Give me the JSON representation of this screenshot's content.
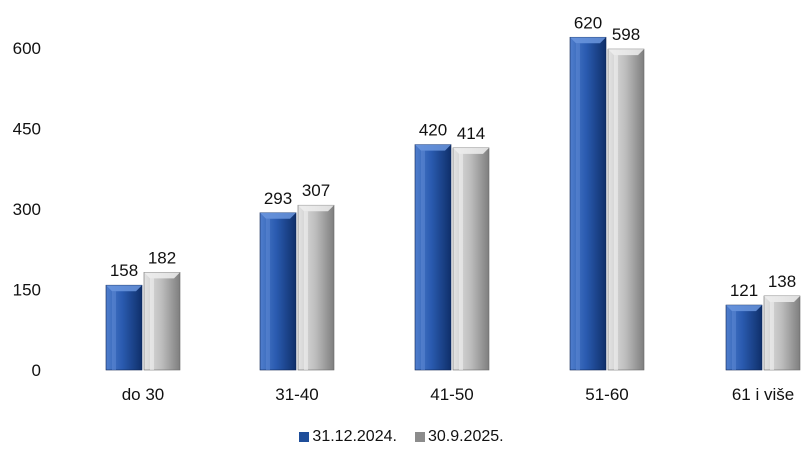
{
  "chart_data": {
    "type": "bar",
    "categories": [
      "do 30",
      "31-40",
      "41-50",
      "51-60",
      "61 i više"
    ],
    "series": [
      {
        "name": "31.12.2024.",
        "values": [
          158,
          293,
          420,
          620,
          121
        ],
        "color": "#1f4e9a"
      },
      {
        "name": "30.9.2025.",
        "values": [
          182,
          307,
          414,
          598,
          138
        ],
        "color": "#a9a9a9"
      }
    ],
    "y_ticks": [
      "0",
      "150",
      "300",
      "450",
      "600"
    ],
    "ylim": [
      0,
      600
    ],
    "legend_position": "bottom",
    "grid": false,
    "title": "",
    "xlabel": "",
    "ylabel": ""
  }
}
